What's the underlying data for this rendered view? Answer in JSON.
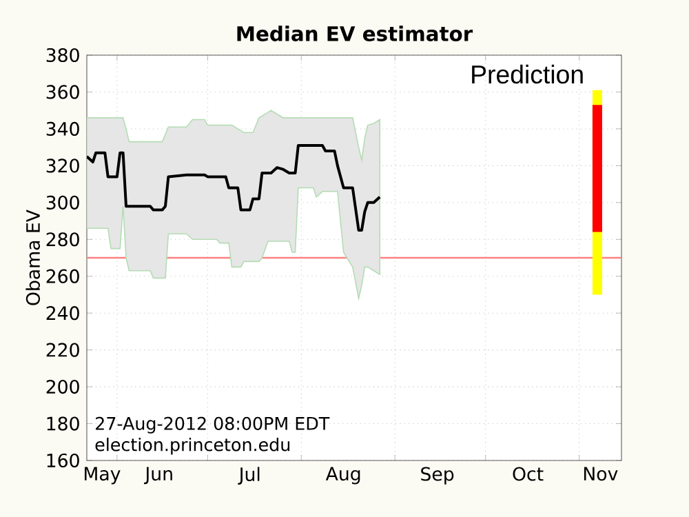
{
  "chart_data": {
    "type": "line",
    "title": "Median EV estimator",
    "ylabel": "Obama EV",
    "xlim": [
      "2012-05-22",
      "2012-11-15"
    ],
    "ylim": [
      160,
      380
    ],
    "yticks": [
      160,
      180,
      200,
      220,
      240,
      260,
      280,
      300,
      320,
      340,
      360,
      380
    ],
    "xticks": [
      {
        "value": "2012-06-01",
        "label": null
      },
      {
        "value": "2012-07-01",
        "label": null
      },
      {
        "value": "2012-08-01",
        "label": null
      },
      {
        "value": "2012-09-01",
        "label": null
      },
      {
        "value": "2012-10-01",
        "label": null
      },
      {
        "value": "2012-11-01",
        "label": null
      },
      {
        "value": "2012-05-27",
        "label": "May"
      },
      {
        "value": "2012-06-15",
        "label": "Jun"
      },
      {
        "value": "2012-07-15",
        "label": "Jul"
      },
      {
        "value": "2012-08-15",
        "label": "Aug"
      },
      {
        "value": "2012-09-15",
        "label": "Sep"
      },
      {
        "value": "2012-10-15",
        "label": "Oct"
      },
      {
        "value": "2012-11-08",
        "label": "Nov"
      }
    ],
    "grid": true,
    "series": [
      {
        "color": "#000000",
        "x": [
          "2012-05-22",
          "2012-05-24",
          "2012-05-25",
          "2012-05-28",
          "2012-05-29",
          "2012-05-30",
          "2012-06-01",
          "2012-06-02",
          "2012-06-03",
          "2012-06-04",
          "2012-06-05",
          "2012-06-12",
          "2012-06-13",
          "2012-06-16",
          "2012-06-17",
          "2012-06-18",
          "2012-06-24",
          "2012-06-26",
          "2012-06-30",
          "2012-07-01",
          "2012-07-04",
          "2012-07-05",
          "2012-07-07",
          "2012-07-08",
          "2012-07-09",
          "2012-07-11",
          "2012-07-12",
          "2012-07-13",
          "2012-07-15",
          "2012-07-16",
          "2012-07-17",
          "2012-07-18",
          "2012-07-19",
          "2012-07-21",
          "2012-07-22",
          "2012-07-24",
          "2012-07-26",
          "2012-07-28",
          "2012-07-29",
          "2012-07-30",
          "2012-07-31",
          "2012-08-05",
          "2012-08-06",
          "2012-08-08",
          "2012-08-09",
          "2012-08-12",
          "2012-08-13",
          "2012-08-15",
          "2012-08-18",
          "2012-08-20",
          "2012-08-21",
          "2012-08-22",
          "2012-08-23",
          "2012-08-25",
          "2012-08-27"
        ],
        "values": [
          325,
          322,
          327,
          327,
          314,
          314,
          314,
          327,
          327,
          298,
          298,
          298,
          296,
          296,
          298,
          314,
          315,
          315,
          315,
          314,
          314,
          314,
          314,
          308,
          308,
          308,
          296,
          296,
          296,
          302,
          302,
          302,
          316,
          316,
          316,
          319,
          318,
          316,
          316,
          316,
          331,
          331,
          331,
          331,
          328,
          328,
          320,
          308,
          308,
          285,
          285,
          295,
          300,
          300,
          303
        ],
        "lower": [
          286,
          286,
          286,
          286,
          286,
          275,
          275,
          275,
          298,
          270,
          263,
          263,
          259,
          259,
          259,
          283,
          283,
          280,
          280,
          280,
          280,
          278,
          278,
          278,
          265,
          265,
          265,
          268,
          268,
          268,
          268,
          268,
          270,
          279,
          279,
          279,
          279,
          279,
          273,
          273,
          308,
          308,
          303,
          306,
          306,
          306,
          306,
          273,
          265,
          248,
          255,
          265,
          265,
          263,
          261
        ],
        "upper": [
          346,
          346,
          346,
          346,
          346,
          346,
          346,
          346,
          346,
          340,
          333,
          333,
          333,
          333,
          337,
          341,
          341,
          345,
          345,
          342,
          342,
          342,
          342,
          342,
          342,
          340,
          339,
          338,
          338,
          338,
          342,
          346,
          347,
          349,
          350,
          348,
          346,
          346,
          346,
          346,
          346,
          346,
          346,
          346,
          346,
          346,
          346,
          346,
          346,
          330,
          323,
          335,
          342,
          343,
          345
        ]
      },
      {
        "type": "bar",
        "color": "#ffff00",
        "x": [
          "2012-11-07"
        ],
        "base": [
          250
        ],
        "values": [
          111
        ]
      },
      {
        "type": "bar",
        "color": "#ff0000",
        "x": [
          "2012-11-07"
        ],
        "base": [
          284
        ],
        "values": [
          69
        ]
      }
    ],
    "ref_lines": [
      {
        "axis": "y",
        "value": 270,
        "color": "#ff8080"
      }
    ],
    "annotations": [
      "Prediction",
      "27-Aug-2012 08:00PM EDT",
      "election.princeton.edu"
    ]
  }
}
